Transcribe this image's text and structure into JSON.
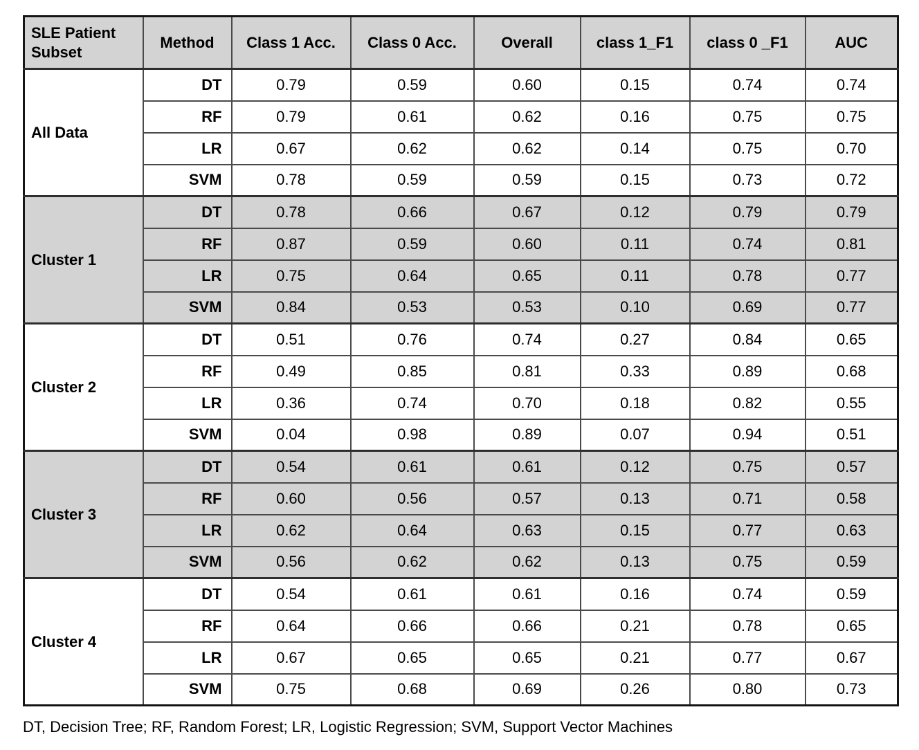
{
  "table": {
    "headers": [
      "SLE Patient Subset",
      "Method",
      "Class 1 Acc.",
      "Class 0 Acc.",
      "Overall",
      "class 1_F1",
      "class 0 _F1",
      "AUC"
    ],
    "groups": [
      {
        "label": "All Data",
        "shaded": false,
        "rows": [
          {
            "method": "DT",
            "values": [
              "0.79",
              "0.59",
              "0.60",
              "0.15",
              "0.74",
              "0.74"
            ]
          },
          {
            "method": "RF",
            "values": [
              "0.79",
              "0.61",
              "0.62",
              "0.16",
              "0.75",
              "0.75"
            ]
          },
          {
            "method": "LR",
            "values": [
              "0.67",
              "0.62",
              "0.62",
              "0.14",
              "0.75",
              "0.70"
            ]
          },
          {
            "method": "SVM",
            "values": [
              "0.78",
              "0.59",
              "0.59",
              "0.15",
              "0.73",
              "0.72"
            ]
          }
        ]
      },
      {
        "label": "Cluster 1",
        "shaded": true,
        "rows": [
          {
            "method": "DT",
            "values": [
              "0.78",
              "0.66",
              "0.67",
              "0.12",
              "0.79",
              "0.79"
            ]
          },
          {
            "method": "RF",
            "values": [
              "0.87",
              "0.59",
              "0.60",
              "0.11",
              "0.74",
              "0.81"
            ]
          },
          {
            "method": "LR",
            "values": [
              "0.75",
              "0.64",
              "0.65",
              "0.11",
              "0.78",
              "0.77"
            ]
          },
          {
            "method": "SVM",
            "values": [
              "0.84",
              "0.53",
              "0.53",
              "0.10",
              "0.69",
              "0.77"
            ]
          }
        ]
      },
      {
        "label": "Cluster 2",
        "shaded": false,
        "rows": [
          {
            "method": "DT",
            "values": [
              "0.51",
              "0.76",
              "0.74",
              "0.27",
              "0.84",
              "0.65"
            ]
          },
          {
            "method": "RF",
            "values": [
              "0.49",
              "0.85",
              "0.81",
              "0.33",
              "0.89",
              "0.68"
            ]
          },
          {
            "method": "LR",
            "values": [
              "0.36",
              "0.74",
              "0.70",
              "0.18",
              "0.82",
              "0.55"
            ]
          },
          {
            "method": "SVM",
            "values": [
              "0.04",
              "0.98",
              "0.89",
              "0.07",
              "0.94",
              "0.51"
            ]
          }
        ]
      },
      {
        "label": "Cluster 3",
        "shaded": true,
        "rows": [
          {
            "method": "DT",
            "values": [
              "0.54",
              "0.61",
              "0.61",
              "0.12",
              "0.75",
              "0.57"
            ]
          },
          {
            "method": "RF",
            "values": [
              "0.60",
              "0.56",
              "0.57",
              "0.13",
              "0.71",
              "0.58"
            ]
          },
          {
            "method": "LR",
            "values": [
              "0.62",
              "0.64",
              "0.63",
              "0.15",
              "0.77",
              "0.63"
            ]
          },
          {
            "method": "SVM",
            "values": [
              "0.56",
              "0.62",
              "0.62",
              "0.13",
              "0.75",
              "0.59"
            ]
          }
        ]
      },
      {
        "label": "Cluster 4",
        "shaded": false,
        "rows": [
          {
            "method": "DT",
            "values": [
              "0.54",
              "0.61",
              "0.61",
              "0.16",
              "0.74",
              "0.59"
            ]
          },
          {
            "method": "RF",
            "values": [
              "0.64",
              "0.66",
              "0.66",
              "0.21",
              "0.78",
              "0.65"
            ]
          },
          {
            "method": "LR",
            "values": [
              "0.67",
              "0.65",
              "0.65",
              "0.21",
              "0.77",
              "0.67"
            ]
          },
          {
            "method": "SVM",
            "values": [
              "0.75",
              "0.68",
              "0.69",
              "0.26",
              "0.80",
              "0.73"
            ]
          }
        ]
      }
    ],
    "footnote": "DT, Decision Tree; RF, Random Forest; LR, Logistic Regression; SVM, Support Vector Machines"
  },
  "colors": {
    "header_bg": "#d3d3d3",
    "shaded_row_bg": "#d3d3d3",
    "plain_row_bg": "#ffffff",
    "inner_border": "#4a4a4a",
    "outer_border": "#141414"
  }
}
